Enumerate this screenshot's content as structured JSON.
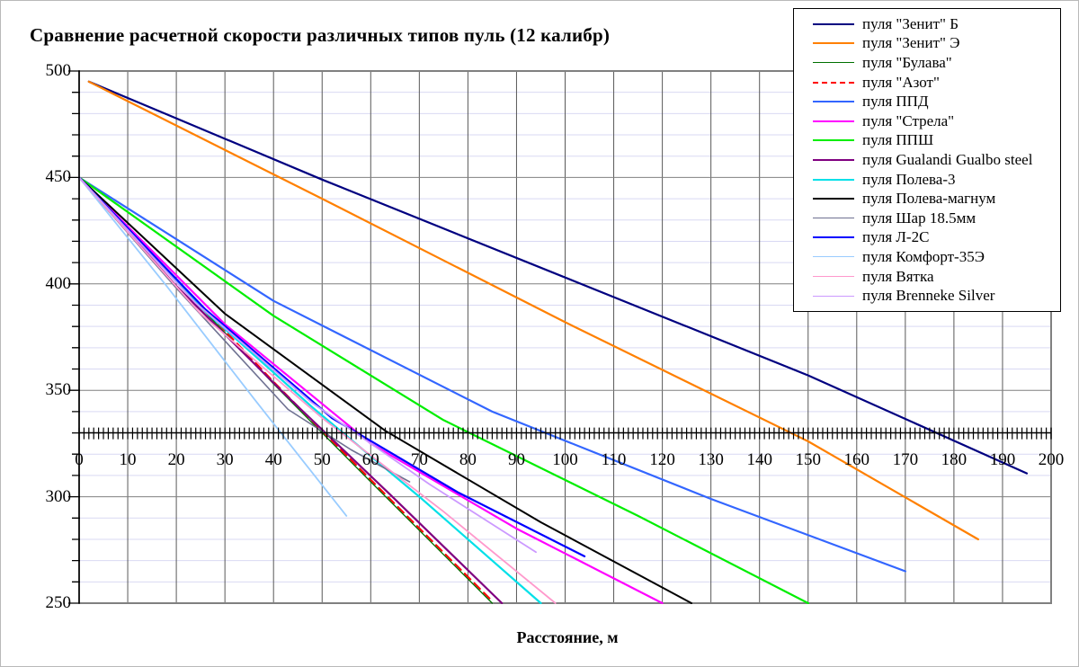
{
  "title": "Сравнение расчетной скорости различных типов пуль (12 калибр)",
  "x_axis_title": "Расстояние, м",
  "chart_data": {
    "type": "line",
    "title": "Сравнение расчетной скорости различных типов пуль (12 калибр)",
    "xlabel": "Расстояние, м",
    "ylabel": "",
    "xlim": [
      0,
      200
    ],
    "ylim": [
      250,
      500
    ],
    "x_major_step": 10,
    "y_major_step": 50,
    "y_minor_step": 10,
    "x_axis_crosses_at_y": 330,
    "grid": "on",
    "legend_position": "top-right",
    "x_tick_labels": [
      0,
      10,
      20,
      30,
      40,
      50,
      60,
      70,
      80,
      90,
      100,
      110,
      120,
      130,
      140,
      150,
      160,
      170,
      180,
      190,
      200
    ],
    "y_tick_labels": [
      250,
      300,
      350,
      400,
      450,
      500
    ],
    "series": [
      {
        "name": "пуля \"Зенит\" Б",
        "color": "#000080",
        "width": 2.2,
        "dash": null,
        "points": [
          [
            2,
            495
          ],
          [
            50,
            449
          ],
          [
            100,
            403
          ],
          [
            150,
            357
          ],
          [
            195,
            311
          ]
        ]
      },
      {
        "name": "пуля \"Зенит\" Э",
        "color": "#FF8000",
        "width": 2.2,
        "dash": null,
        "points": [
          [
            2,
            495
          ],
          [
            50,
            440
          ],
          [
            100,
            382
          ],
          [
            150,
            326
          ],
          [
            185,
            280
          ]
        ]
      },
      {
        "name": "пуля \"Булава\"",
        "color": "#007000",
        "width": 1.3,
        "dash": null,
        "points": [
          [
            0,
            450
          ],
          [
            20,
            401
          ],
          [
            40,
            353
          ],
          [
            60,
            307
          ],
          [
            85,
            250
          ]
        ]
      },
      {
        "name": "пуля \"Азот\"",
        "color": "#FF0000",
        "width": 2.0,
        "dash": "9 6",
        "points": [
          [
            0,
            450
          ],
          [
            20,
            402
          ],
          [
            40,
            354
          ],
          [
            60,
            308
          ],
          [
            85,
            251
          ]
        ]
      },
      {
        "name": "пуля ППД",
        "color": "#3366FF",
        "width": 2.2,
        "dash": null,
        "points": [
          [
            0,
            450
          ],
          [
            40,
            392
          ],
          [
            85,
            340
          ],
          [
            130,
            299
          ],
          [
            170,
            265
          ]
        ]
      },
      {
        "name": "пуля \"Стрела\"",
        "color": "#FF00FF",
        "width": 2.2,
        "dash": null,
        "points": [
          [
            0,
            450
          ],
          [
            30,
            381
          ],
          [
            60,
            325
          ],
          [
            90,
            285
          ],
          [
            120,
            250
          ]
        ]
      },
      {
        "name": "пуля ППШ",
        "color": "#00EE00",
        "width": 2.2,
        "dash": null,
        "points": [
          [
            0,
            450
          ],
          [
            40,
            385
          ],
          [
            75,
            336
          ],
          [
            115,
            291
          ],
          [
            150,
            250
          ]
        ]
      },
      {
        "name": "пуля Gualandi Gualbo steel",
        "color": "#800080",
        "width": 2.2,
        "dash": null,
        "points": [
          [
            0,
            450
          ],
          [
            20,
            399
          ],
          [
            42,
            349
          ],
          [
            64,
            301
          ],
          [
            87,
            250
          ]
        ]
      },
      {
        "name": "пуля  Полева-3",
        "color": "#00E0E8",
        "width": 2.2,
        "dash": null,
        "points": [
          [
            0,
            450
          ],
          [
            25,
            389
          ],
          [
            48,
            342
          ],
          [
            70,
            300
          ],
          [
            95,
            250
          ]
        ]
      },
      {
        "name": "пуля  Полева-магнум",
        "color": "#000000",
        "width": 2.0,
        "dash": null,
        "points": [
          [
            0,
            450
          ],
          [
            30,
            386
          ],
          [
            63,
            331
          ],
          [
            95,
            288
          ],
          [
            126,
            250
          ]
        ]
      },
      {
        "name": "пуля Шар 18.5мм",
        "color": "#6E7191",
        "width": 1.6,
        "dash": null,
        "points": [
          [
            0,
            450
          ],
          [
            20,
            398
          ],
          [
            43,
            341
          ],
          [
            56,
            322
          ],
          [
            68,
            307
          ]
        ]
      },
      {
        "name": "пуля Л-2С",
        "color": "#0000FF",
        "width": 2.2,
        "dash": null,
        "points": [
          [
            0,
            450
          ],
          [
            26,
            388
          ],
          [
            52,
            337
          ],
          [
            78,
            302
          ],
          [
            104,
            272
          ]
        ]
      },
      {
        "name": "пуля  Комфорт-35Э",
        "color": "#99CCFF",
        "width": 1.8,
        "dash": null,
        "points": [
          [
            0,
            450
          ],
          [
            18,
            399
          ],
          [
            36,
            346
          ],
          [
            46,
            317
          ],
          [
            55,
            291
          ]
        ]
      },
      {
        "name": "пуля  Вятка",
        "color": "#FF99CC",
        "width": 1.8,
        "dash": null,
        "points": [
          [
            0,
            450
          ],
          [
            25,
            386
          ],
          [
            50,
            337
          ],
          [
            75,
            293
          ],
          [
            98,
            250
          ]
        ]
      },
      {
        "name": "пуля  Brenneke Silver",
        "color": "#CC99FF",
        "width": 1.8,
        "dash": null,
        "points": [
          [
            0,
            450
          ],
          [
            24,
            391
          ],
          [
            48,
            344
          ],
          [
            72,
            306
          ],
          [
            94,
            274
          ]
        ]
      }
    ]
  },
  "style": {
    "plot_border_color": "#808080",
    "vertical_grid_color": "#595959",
    "major_h_grid_color": "#808080",
    "minor_h_grid_color": "#D9D9F3",
    "axis_color": "#000000"
  }
}
